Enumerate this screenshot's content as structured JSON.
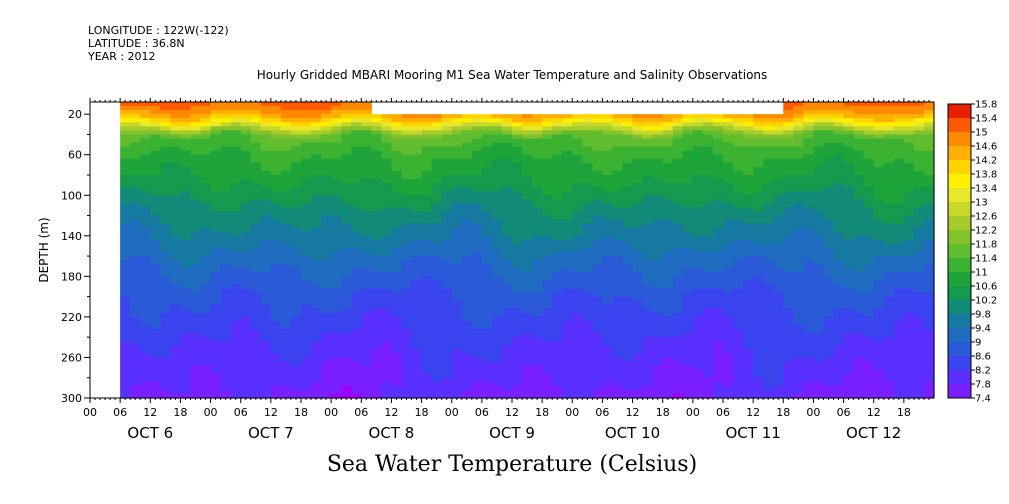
{
  "header": {
    "longitude": "LONGITUDE : 122W(-122)",
    "latitude": "LATITUDE : 36.8N",
    "year": "YEAR : 2012"
  },
  "chart_data": {
    "type": "heatmap",
    "title": "Hourly Gridded MBARI Mooring M1 Sea Water Temperature and Salinity Observations",
    "xlabel": "",
    "ylabel": "DEPTH (m)",
    "caption": "Sea Water Temperature (Celsius)",
    "ylim": [
      300,
      0
    ],
    "yticks": [
      20,
      60,
      100,
      140,
      180,
      220,
      260,
      300
    ],
    "hour_ticks": [
      "00",
      "06",
      "12",
      "18",
      "00",
      "06",
      "12",
      "18",
      "00",
      "06",
      "12",
      "18",
      "00",
      "06",
      "12",
      "18",
      "00",
      "06",
      "12",
      "18",
      "00",
      "06",
      "12",
      "18",
      "00",
      "06",
      "12",
      "18"
    ],
    "days": [
      "OCT 6",
      "OCT 7",
      "OCT 8",
      "OCT 9",
      "OCT 10",
      "OCT 11",
      "OCT 12"
    ],
    "colorbar_levels": [
      15.8,
      15.4,
      15,
      14.6,
      14.2,
      13.8,
      13.4,
      13,
      12.6,
      12.2,
      11.8,
      11.4,
      11,
      10.6,
      10.2,
      9.8,
      9.4,
      9,
      8.6,
      8.2,
      7.8,
      7.4
    ],
    "data_start_hour": 6,
    "missing_surface": {
      "start_hour": 56,
      "end_hour": 138,
      "shallowest_depth": 20
    },
    "depth_profile": [
      {
        "depth": 5,
        "temp": 15.2
      },
      {
        "depth": 15,
        "temp": 14.8
      },
      {
        "depth": 22,
        "temp": 14.2
      },
      {
        "depth": 27,
        "temp": 13.5
      },
      {
        "depth": 32,
        "temp": 12.6
      },
      {
        "depth": 40,
        "temp": 11.5
      },
      {
        "depth": 60,
        "temp": 11.0
      },
      {
        "depth": 80,
        "temp": 10.7
      },
      {
        "depth": 100,
        "temp": 10.3
      },
      {
        "depth": 120,
        "temp": 9.9
      },
      {
        "depth": 140,
        "temp": 9.6
      },
      {
        "depth": 160,
        "temp": 9.2
      },
      {
        "depth": 180,
        "temp": 8.9
      },
      {
        "depth": 200,
        "temp": 8.6
      },
      {
        "depth": 220,
        "temp": 8.4
      },
      {
        "depth": 250,
        "temp": 8.1
      },
      {
        "depth": 275,
        "temp": 7.9
      },
      {
        "depth": 300,
        "temp": 7.7
      }
    ],
    "palette": [
      "#9b00ff",
      "#7a1fff",
      "#5a30ff",
      "#3a45f0",
      "#2a5ad8",
      "#1f6cc0",
      "#167aa0",
      "#118a78",
      "#14994e",
      "#1ea53a",
      "#3cb232",
      "#62bd2e",
      "#84c22c",
      "#a6cc2c",
      "#c8d82a",
      "#e8e82a",
      "#fff000",
      "#ffd500",
      "#ffb000",
      "#ff8a00",
      "#ff5a00",
      "#e82000",
      "#b80000"
    ]
  }
}
